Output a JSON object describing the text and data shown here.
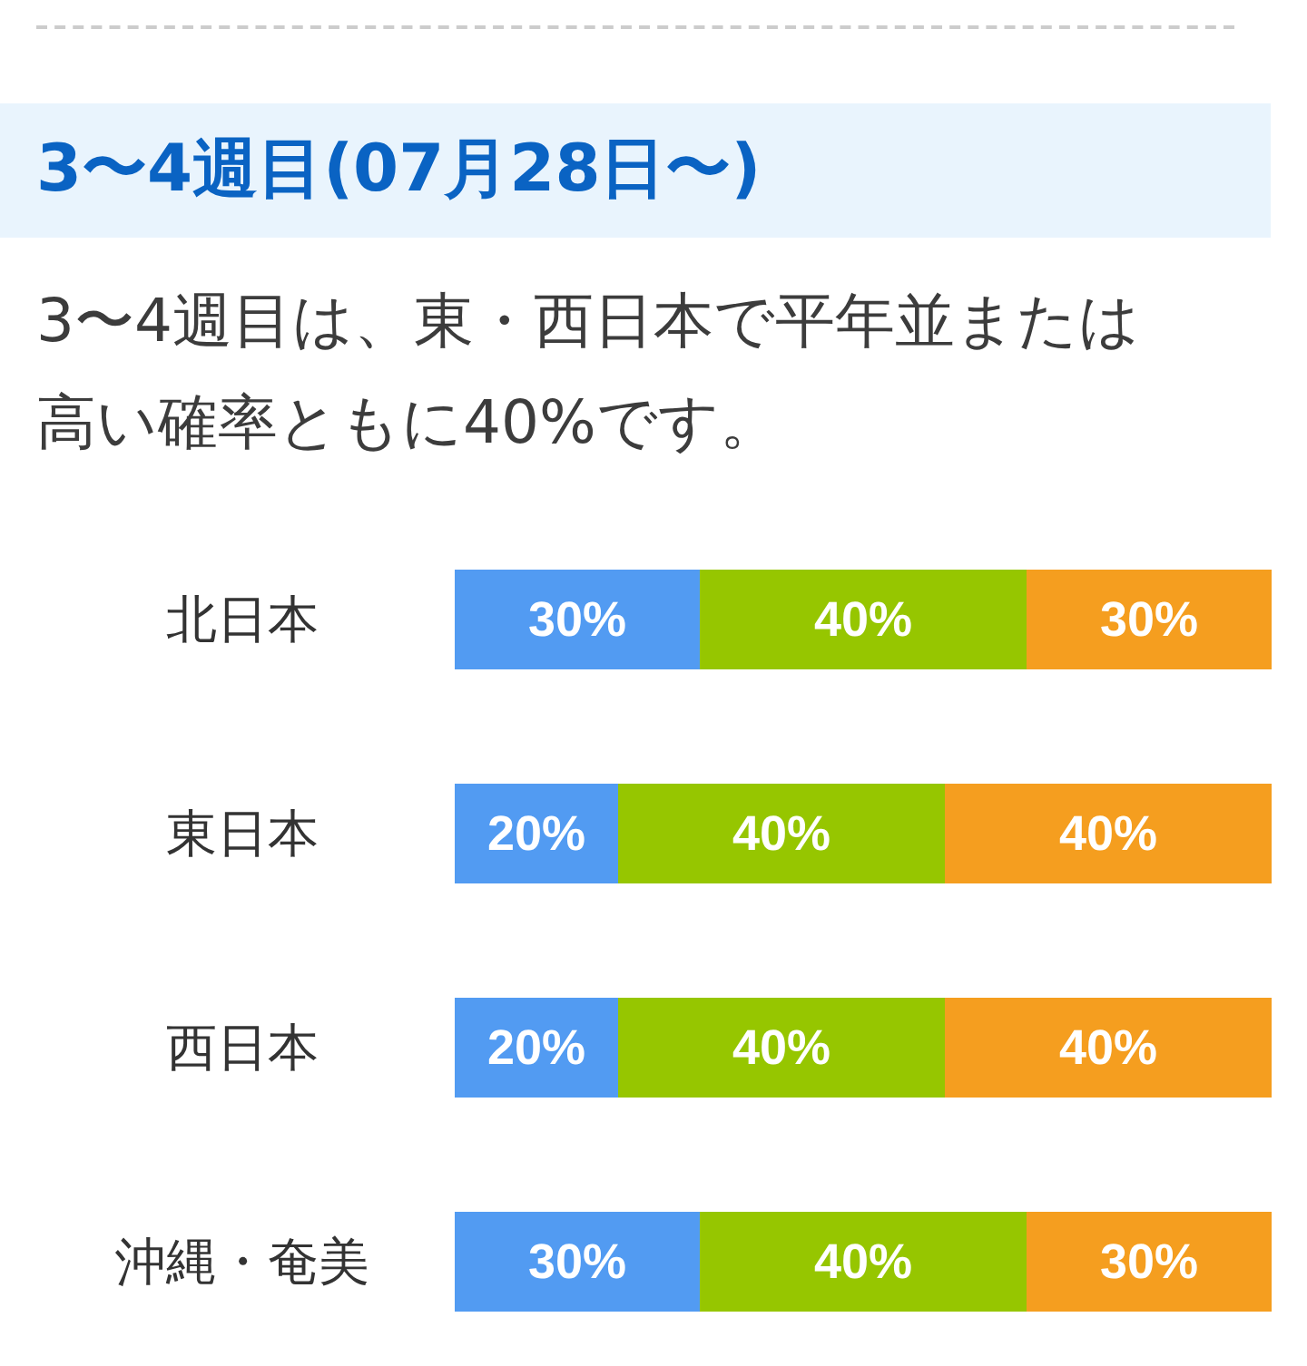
{
  "chart_data": {
    "type": "bar",
    "orientation": "horizontal",
    "stacked": true,
    "title": "3〜4週目(07月28日〜)",
    "subtitle": "3〜4週目は、東・西日本で平年並または高い確率ともに40%です。",
    "categories": [
      "北日本",
      "東日本",
      "西日本",
      "沖縄・奄美"
    ],
    "series": [
      {
        "color": "#529bf2",
        "values": [
          30,
          20,
          20,
          30
        ],
        "value_labels": [
          "30%",
          "20%",
          "20%",
          "30%"
        ]
      },
      {
        "color": "#96c600",
        "values": [
          40,
          40,
          40,
          40
        ],
        "value_labels": [
          "40%",
          "40%",
          "40%",
          "40%"
        ]
      },
      {
        "color": "#f59e1f",
        "values": [
          30,
          40,
          40,
          30
        ],
        "value_labels": [
          "30%",
          "40%",
          "40%",
          "30%"
        ]
      }
    ]
  }
}
